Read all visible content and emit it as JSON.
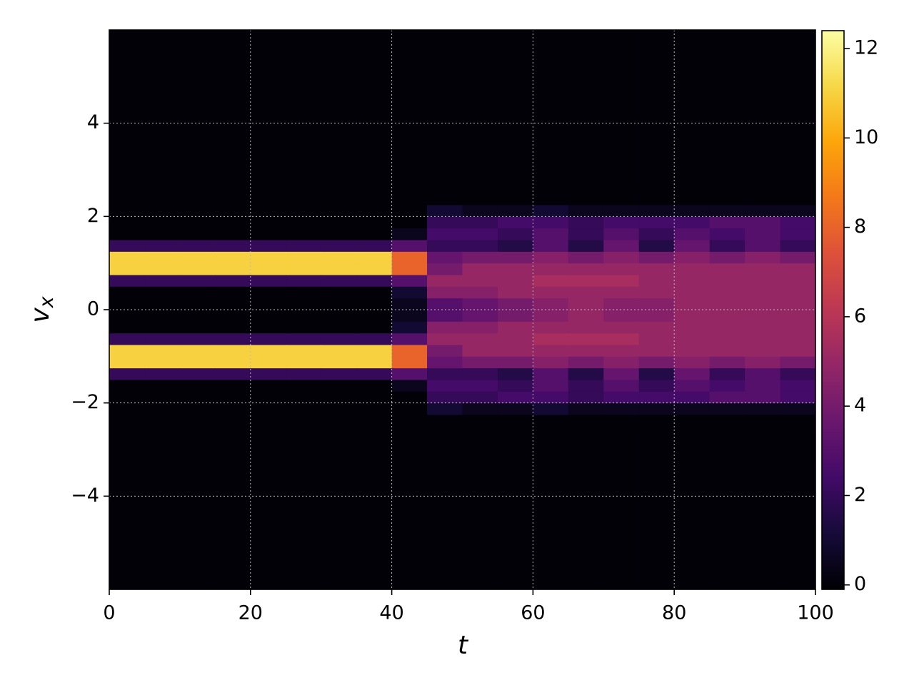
{
  "chart_data": {
    "type": "heatmap",
    "xlabel": "t",
    "ylabel": {
      "base": "v",
      "subscript": "x"
    },
    "xlim": [
      0,
      100
    ],
    "ylim": [
      -6,
      6
    ],
    "xticks": [
      0,
      20,
      40,
      60,
      80,
      100
    ],
    "yticks": [
      {
        "value": -4,
        "label": "−4"
      },
      {
        "value": -2,
        "label": "−2"
      },
      0,
      2,
      4
    ],
    "grid": true,
    "colormap": "inferno",
    "clim": [
      -0.1,
      12.4
    ],
    "cticks": [
      0,
      2,
      4,
      6,
      8,
      10,
      12
    ],
    "x_edges": [
      0,
      5,
      10,
      15,
      20,
      25,
      30,
      35,
      40,
      45,
      50,
      55,
      60,
      65,
      70,
      75,
      80,
      85,
      90,
      95,
      100
    ],
    "y_edges": [
      -6,
      -2.5,
      -2.25,
      -2,
      -1.75,
      -1.5,
      -1.25,
      -1,
      -0.75,
      -0.5,
      -0.25,
      0,
      0.25,
      0.5,
      0.75,
      1,
      1.25,
      1.5,
      1.75,
      2,
      2.25,
      2.5,
      6
    ],
    "z": [
      [
        0,
        0,
        0,
        0,
        0,
        2,
        11,
        11,
        2,
        0,
        0,
        0,
        0,
        2,
        11,
        11,
        2,
        0,
        0,
        0,
        0,
        0
      ],
      [
        0,
        0,
        0,
        0,
        0,
        2,
        11,
        11,
        2,
        0,
        0,
        0,
        0,
        2,
        11,
        11,
        2,
        0,
        0,
        0,
        0,
        0
      ],
      [
        0,
        0,
        0,
        0,
        0,
        2,
        11,
        11,
        2,
        0,
        0,
        0,
        0,
        2,
        11,
        11,
        2,
        0,
        0,
        0,
        0,
        0
      ],
      [
        0,
        0,
        0,
        0,
        0,
        2,
        11,
        11,
        2,
        0,
        0,
        0,
        0,
        2,
        11,
        11,
        2,
        0,
        0,
        0,
        0,
        0
      ],
      [
        0,
        0,
        0,
        0,
        0,
        2,
        11,
        11,
        2,
        0,
        0,
        0,
        0,
        2,
        11,
        11,
        2,
        0,
        0,
        0,
        0,
        0
      ],
      [
        0,
        0,
        0,
        0,
        0,
        2,
        11,
        11,
        2,
        0,
        0,
        0,
        0,
        2,
        11,
        11,
        2,
        0,
        0,
        0,
        0,
        0
      ],
      [
        0,
        0,
        0,
        0,
        0,
        2,
        11,
        11,
        2,
        0,
        0,
        0,
        0,
        2,
        11,
        11,
        2,
        0,
        0,
        0,
        0,
        0
      ],
      [
        0,
        0,
        0,
        0,
        0,
        2,
        11,
        11,
        2,
        0,
        0,
        0,
        0,
        2,
        11,
        11,
        2,
        0,
        0,
        0,
        0,
        0
      ],
      [
        0,
        0,
        0,
        0,
        0.5,
        3,
        8,
        8,
        3,
        1,
        0.5,
        0.5,
        1,
        3,
        8,
        8,
        3,
        0.5,
        0,
        0,
        0,
        0
      ],
      [
        0,
        0,
        1,
        2,
        2.5,
        2,
        3.5,
        4,
        5,
        4.5,
        3,
        3,
        4.5,
        5,
        4,
        3.5,
        2,
        2.5,
        2,
        1,
        0,
        0
      ],
      [
        0,
        0,
        0.5,
        2,
        2.5,
        2,
        4,
        5,
        5,
        4.5,
        3.5,
        3.5,
        4.5,
        5,
        5,
        4,
        2,
        2.5,
        2,
        0.5,
        0,
        0
      ],
      [
        0,
        0,
        0.5,
        2.5,
        2,
        1.5,
        4,
        5,
        5,
        5,
        4,
        4,
        5,
        5,
        5,
        4,
        1.5,
        2,
        2.5,
        0.5,
        0,
        0
      ],
      [
        0,
        0,
        1,
        2.5,
        3,
        3,
        4.5,
        5,
        5.5,
        5,
        4.5,
        4.5,
        5,
        5.5,
        5,
        4.5,
        3,
        3,
        2.5,
        1,
        0,
        0
      ],
      [
        0,
        0,
        0.5,
        2,
        2,
        1.5,
        4,
        5,
        5.5,
        5,
        5,
        5,
        5,
        5.5,
        5,
        4,
        1.5,
        2,
        2,
        0.5,
        0,
        0
      ],
      [
        0,
        0,
        0.5,
        2.5,
        3,
        3.5,
        4.5,
        5,
        5.5,
        5,
        4.5,
        4.5,
        5,
        5.5,
        5,
        4.5,
        3.5,
        3,
        2.5,
        0.5,
        0,
        0
      ],
      [
        0,
        0,
        0.5,
        2.5,
        2,
        1.5,
        4,
        5,
        5,
        5,
        4.5,
        4.5,
        5,
        5,
        5,
        4,
        1.5,
        2,
        2.5,
        0.5,
        0,
        0
      ],
      [
        0,
        0,
        0.5,
        2.5,
        3,
        3.5,
        4.5,
        5,
        5,
        5,
        5,
        5,
        5,
        5,
        5,
        4.5,
        3.5,
        3,
        2.5,
        0.5,
        0,
        0
      ],
      [
        0,
        0,
        0.5,
        3,
        2.5,
        2,
        4,
        5,
        5,
        5,
        5,
        5,
        5,
        5,
        5,
        4,
        2,
        2.5,
        3,
        0.5,
        0,
        0
      ],
      [
        0,
        0,
        0.5,
        3,
        3,
        3,
        4.5,
        5,
        5,
        5,
        5,
        5,
        5,
        5,
        5,
        4.5,
        3,
        3,
        3,
        0.5,
        0,
        0
      ],
      [
        0,
        0,
        0.5,
        2.5,
        2.5,
        2,
        4,
        5,
        5,
        5,
        5,
        5,
        5,
        5,
        5,
        4,
        2,
        2.5,
        2.5,
        0.5,
        0,
        0
      ]
    ]
  }
}
